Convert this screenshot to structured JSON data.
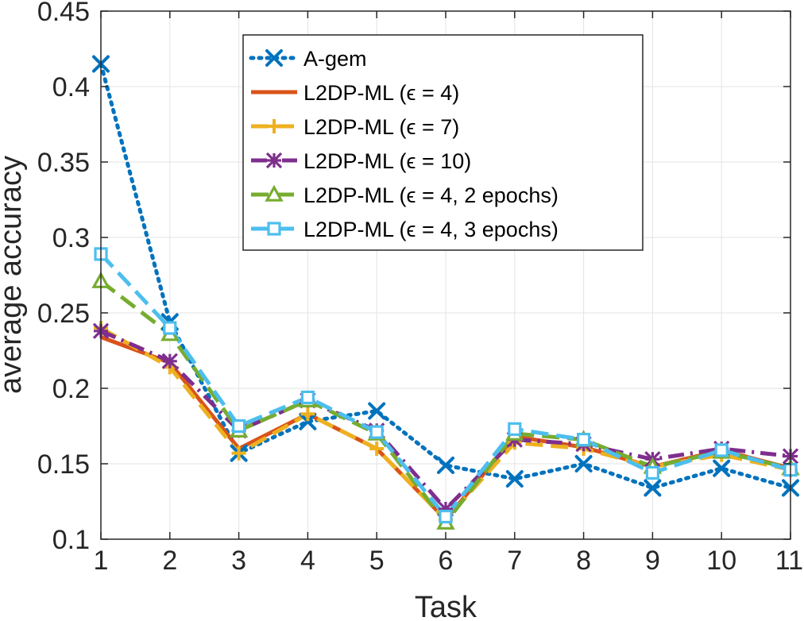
{
  "chart_data": {
    "type": "line",
    "xlabel": "Task",
    "ylabel": "average accuracy",
    "xlim": [
      1,
      11
    ],
    "ylim": [
      0.1,
      0.45
    ],
    "x": [
      1,
      2,
      3,
      4,
      5,
      6,
      7,
      8,
      9,
      10,
      11
    ],
    "x_ticks": [
      "1",
      "2",
      "3",
      "4",
      "5",
      "6",
      "7",
      "8",
      "9",
      "10",
      "11"
    ],
    "y_ticks": [
      0.1,
      0.15,
      0.2,
      0.25,
      0.3,
      0.35,
      0.4,
      0.45
    ],
    "y_tick_labels": [
      "0.1",
      "0.15",
      "0.2",
      "0.25",
      "0.3",
      "0.35",
      "0.4",
      "0.45"
    ],
    "grid": true,
    "legend_position": "top-center",
    "series": [
      {
        "name": "A-gem",
        "legend_label": "A-gem",
        "color": "#0072BD",
        "marker": "x",
        "dash": "dotted",
        "values": [
          0.415,
          0.244,
          0.157,
          0.178,
          0.185,
          0.149,
          0.14,
          0.15,
          0.134,
          0.147,
          0.134
        ]
      },
      {
        "name": "L2DP-ML (ε = 4)",
        "legend_label": "L2DP-ML (ϵ = 4)",
        "color": "#D95319",
        "marker": "none",
        "dash": "solid",
        "values": [
          0.234,
          0.217,
          0.16,
          0.183,
          0.16,
          0.113,
          0.168,
          0.161,
          0.148,
          0.159,
          0.147
        ]
      },
      {
        "name": "L2DP-ML (ε = 7)",
        "legend_label": "L2DP-ML (ϵ = 7)",
        "color": "#EDB120",
        "marker": "plus",
        "dash": "dashed",
        "values": [
          0.24,
          0.214,
          0.157,
          0.183,
          0.16,
          0.113,
          0.164,
          0.16,
          0.148,
          0.156,
          0.146
        ]
      },
      {
        "name": "L2DP-ML (ε = 10)",
        "legend_label": "L2DP-ML (ϵ = 10)",
        "color": "#7E2F8E",
        "marker": "asterisk",
        "dash": "dashdot",
        "values": [
          0.238,
          0.218,
          0.172,
          0.192,
          0.172,
          0.12,
          0.166,
          0.163,
          0.153,
          0.16,
          0.155
        ]
      },
      {
        "name": "L2DP-ML (ε = 4, 2 epochs)",
        "legend_label": "L2DP-ML (ϵ = 4, 2 epochs)",
        "color": "#77AC30",
        "marker": "triangle",
        "dash": "dashed",
        "values": [
          0.271,
          0.236,
          0.172,
          0.192,
          0.17,
          0.111,
          0.17,
          0.166,
          0.148,
          0.158,
          0.147
        ]
      },
      {
        "name": "L2DP-ML (ε = 4, 3 epochs)",
        "legend_label": "L2DP-ML (ϵ = 4, 3 epochs)",
        "color": "#4DBEEE",
        "marker": "square",
        "dash": "dashed",
        "values": [
          0.289,
          0.24,
          0.175,
          0.194,
          0.171,
          0.115,
          0.173,
          0.166,
          0.144,
          0.159,
          0.146
        ]
      }
    ]
  }
}
